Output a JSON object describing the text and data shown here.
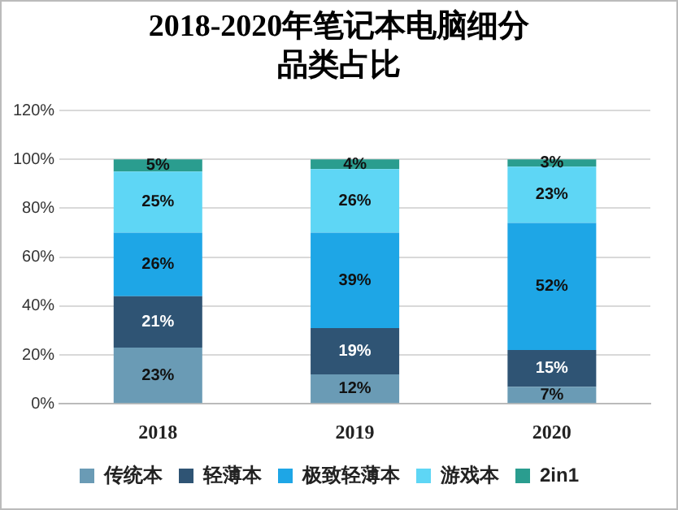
{
  "chart_data": {
    "type": "bar",
    "title": "2018-2020年笔记本电脑细分品类占比",
    "categories": [
      "2018",
      "2019",
      "2020"
    ],
    "stacked": true,
    "grid": "y",
    "legend": "bottom",
    "ylim": [
      0,
      120
    ],
    "yticks": [
      {
        "value": 0,
        "label": "0%"
      },
      {
        "value": 20,
        "label": "20%"
      },
      {
        "value": 40,
        "label": "40%"
      },
      {
        "value": 60,
        "label": "60%"
      },
      {
        "value": 80,
        "label": "80%"
      },
      {
        "value": 100,
        "label": "100%"
      },
      {
        "value": 120,
        "label": "120%"
      }
    ],
    "series": [
      {
        "name": "传统本",
        "color": "#6a9bb5",
        "values": [
          23,
          12,
          7
        ],
        "value_labels": [
          "23%",
          "12%",
          "7%"
        ]
      },
      {
        "name": "轻薄本",
        "color": "#2f5474",
        "values": [
          21,
          19,
          15
        ],
        "value_labels": [
          "21%",
          "19%",
          "15%"
        ]
      },
      {
        "name": "极致轻薄本",
        "color": "#1ea6e6",
        "values": [
          26,
          39,
          52
        ],
        "value_labels": [
          "26%",
          "39%",
          "52%"
        ]
      },
      {
        "name": "游戏本",
        "color": "#5ed6f5",
        "values": [
          25,
          26,
          23
        ],
        "value_labels": [
          "25%",
          "26%",
          "23%"
        ]
      },
      {
        "name": "2in1",
        "color": "#2a9d8f",
        "values": [
          5,
          4,
          3
        ],
        "value_labels": [
          "5%",
          "4%",
          "3%"
        ]
      }
    ]
  }
}
